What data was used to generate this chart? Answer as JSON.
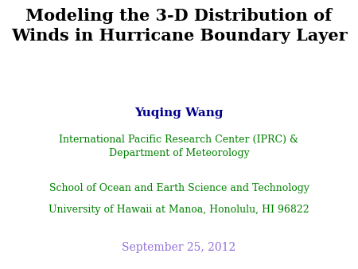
{
  "title_line1": "Modeling the 3-D Distribution of",
  "title_line2": "Winds in Hurricane Boundary Layer",
  "title_color": "#000000",
  "title_fontsize": 15,
  "title_bold": true,
  "author": "Yuqing Wang",
  "author_color": "#00008B",
  "author_fontsize": 11,
  "author_bold": true,
  "affil1_line1": "International Pacific Research Center (IPRC) &",
  "affil1_line2": "Department of Meteorology",
  "affil2": "School of Ocean and Earth Science and Technology",
  "affil3": "University of Hawaii at Manoa, Honolulu, HI 96822",
  "affil_color": "#008000",
  "affil_fontsize": 9,
  "date": "September 25, 2012",
  "date_color": "#9370DB",
  "date_fontsize": 10,
  "background_color": "#ffffff"
}
